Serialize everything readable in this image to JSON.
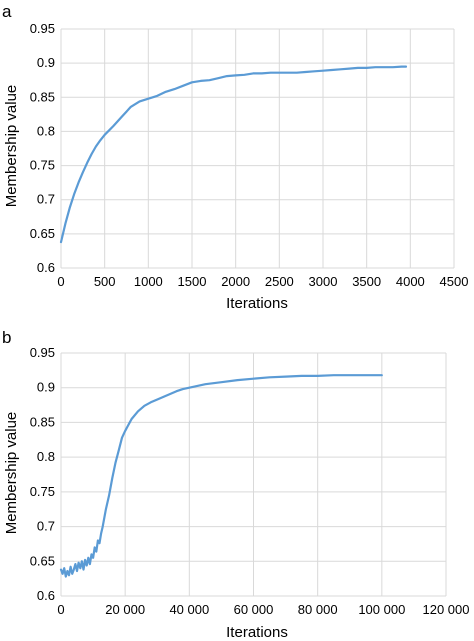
{
  "colors": {
    "series": "#5b9bd5",
    "grid": "#d9d9d9"
  },
  "chart_data": [
    {
      "panel": "a",
      "type": "line",
      "title": "",
      "xlabel": "Iterations",
      "ylabel": "Membership value",
      "xlim": [
        0,
        4500
      ],
      "ylim": [
        0.6,
        0.95
      ],
      "xticks": [
        0,
        500,
        1000,
        1500,
        2000,
        2500,
        3000,
        3500,
        4000,
        4500
      ],
      "xtick_labels": [
        "0",
        "500",
        "1000",
        "1500",
        "2000",
        "2500",
        "3000",
        "3500",
        "4000",
        "4500"
      ],
      "yticks": [
        0.6,
        0.65,
        0.7,
        0.75,
        0.8,
        0.85,
        0.9,
        0.95
      ],
      "ytick_labels": [
        "0.6",
        "0.65",
        "0.7",
        "0.75",
        "0.8",
        "0.85",
        "0.9",
        "0.95"
      ],
      "grid": true,
      "series": [
        {
          "x": [
            0,
            50,
            100,
            150,
            200,
            250,
            300,
            350,
            400,
            450,
            500,
            600,
            700,
            800,
            900,
            1000,
            1100,
            1200,
            1300,
            1400,
            1500,
            1600,
            1700,
            1800,
            1900,
            2000,
            2100,
            2200,
            2300,
            2400,
            2500,
            2600,
            2700,
            2800,
            2900,
            3000,
            3100,
            3200,
            3300,
            3400,
            3500,
            3600,
            3700,
            3800,
            3900,
            3950
          ],
          "y": [
            0.638,
            0.665,
            0.688,
            0.708,
            0.725,
            0.74,
            0.754,
            0.767,
            0.778,
            0.787,
            0.795,
            0.808,
            0.822,
            0.836,
            0.844,
            0.848,
            0.852,
            0.858,
            0.862,
            0.867,
            0.872,
            0.874,
            0.875,
            0.878,
            0.881,
            0.882,
            0.883,
            0.885,
            0.885,
            0.886,
            0.886,
            0.886,
            0.886,
            0.887,
            0.888,
            0.889,
            0.89,
            0.891,
            0.892,
            0.893,
            0.893,
            0.894,
            0.894,
            0.894,
            0.895,
            0.895
          ]
        }
      ]
    },
    {
      "panel": "b",
      "type": "line",
      "title": "",
      "xlabel": "Iterations",
      "ylabel": "Membership value",
      "xlim": [
        0,
        120000
      ],
      "ylim": [
        0.6,
        0.95
      ],
      "xticks": [
        0,
        20000,
        40000,
        60000,
        80000,
        100000,
        120000
      ],
      "xtick_labels": [
        "0",
        "20 000",
        "40 000",
        "60 000",
        "80 000",
        "100 000",
        "120 000"
      ],
      "yticks": [
        0.6,
        0.65,
        0.7,
        0.75,
        0.8,
        0.85,
        0.9,
        0.95
      ],
      "ytick_labels": [
        "0.6",
        "0.65",
        "0.7",
        "0.75",
        "0.8",
        "0.85",
        "0.9",
        "0.95"
      ],
      "grid": true,
      "series": [
        {
          "x": [
            0,
            500,
            1000,
            1500,
            2000,
            2500,
            3000,
            3500,
            4000,
            4500,
            5000,
            5500,
            6000,
            6500,
            7000,
            7500,
            8000,
            8500,
            9000,
            9500,
            10000,
            10500,
            11000,
            11500,
            12000,
            12500,
            13000,
            14000,
            15000,
            16000,
            17000,
            18000,
            19000,
            20000,
            22000,
            24000,
            26000,
            28000,
            30000,
            32000,
            34000,
            36000,
            38000,
            40000,
            45000,
            50000,
            55000,
            60000,
            65000,
            70000,
            75000,
            80000,
            85000,
            90000,
            95000,
            100000
          ],
          "y": [
            0.638,
            0.632,
            0.64,
            0.628,
            0.636,
            0.63,
            0.642,
            0.632,
            0.638,
            0.646,
            0.636,
            0.648,
            0.64,
            0.65,
            0.638,
            0.652,
            0.644,
            0.655,
            0.646,
            0.66,
            0.655,
            0.67,
            0.664,
            0.68,
            0.676,
            0.69,
            0.7,
            0.725,
            0.745,
            0.77,
            0.792,
            0.81,
            0.828,
            0.838,
            0.855,
            0.866,
            0.874,
            0.879,
            0.883,
            0.887,
            0.891,
            0.895,
            0.898,
            0.9,
            0.905,
            0.908,
            0.911,
            0.913,
            0.915,
            0.916,
            0.917,
            0.917,
            0.918,
            0.918,
            0.918,
            0.918
          ]
        }
      ]
    }
  ]
}
